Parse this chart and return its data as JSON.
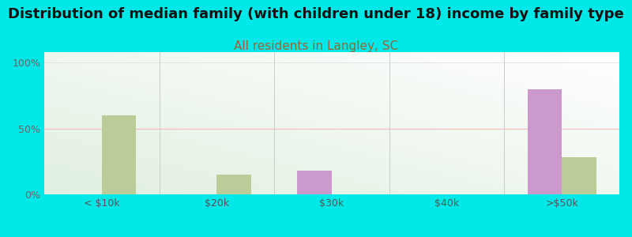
{
  "title": "Distribution of median family (with children under 18) income by family type",
  "subtitle": "All residents in Langley, SC",
  "categories": [
    "< $10k",
    "$20k",
    "$30k",
    "$40k",
    ">$50k"
  ],
  "married_couple": [
    0,
    0,
    18,
    0,
    80
  ],
  "female_no_husband": [
    60,
    15,
    0,
    0,
    28
  ],
  "married_color": "#cc99cc",
  "female_color": "#bbcc99",
  "background_color": "#00e8e8",
  "title_fontsize": 13,
  "subtitle_fontsize": 11,
  "subtitle_color": "#996633",
  "yticks": [
    0,
    50,
    100
  ],
  "ylabels": [
    "0%",
    "50%",
    "100%"
  ],
  "bar_width": 0.3,
  "ylim": [
    0,
    108
  ]
}
